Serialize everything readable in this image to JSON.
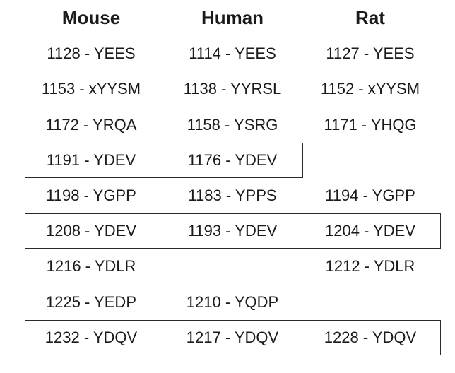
{
  "columns": [
    "Mouse",
    "Human",
    "Rat"
  ],
  "rows": [
    {
      "cells": [
        "1128 - YEES",
        "1114 - YEES",
        "1127 - YEES"
      ],
      "boxed": false
    },
    {
      "cells": [
        "1153 - xYYSM",
        "1138 - YYRSL",
        "1152 - xYYSM"
      ],
      "boxed": false
    },
    {
      "cells": [
        "1172 - YRQA",
        "1158 - YSRG",
        "1171 - YHQG"
      ],
      "boxed": false
    },
    {
      "cells": [
        "1191 - YDEV",
        "1176 - YDEV",
        ""
      ],
      "boxed": true
    },
    {
      "cells": [
        "1198 - YGPP",
        "1183 - YPPS",
        "1194 - YGPP"
      ],
      "boxed": false
    },
    {
      "cells": [
        "1208 - YDEV",
        "1193 - YDEV",
        "1204 - YDEV"
      ],
      "boxed": true
    },
    {
      "cells": [
        "1216 - YDLR",
        "",
        "1212 - YDLR"
      ],
      "boxed": false
    },
    {
      "cells": [
        "1225 - YEDP",
        "1210 - YQDP",
        ""
      ],
      "boxed": false
    },
    {
      "cells": [
        "1232 - YDQV",
        "1217 - YDQV",
        "1228 - YDQV"
      ],
      "boxed": true
    }
  ]
}
